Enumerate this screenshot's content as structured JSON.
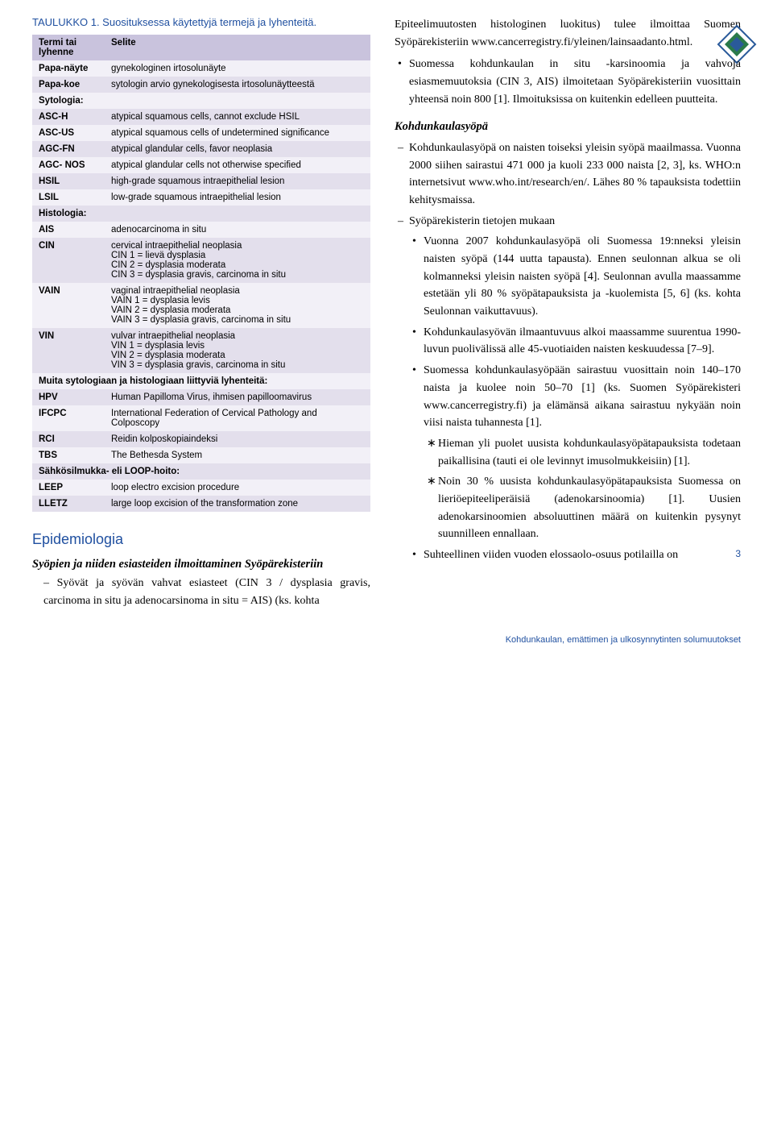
{
  "table": {
    "title": "TAULUKKO 1. Suosituksessa käytettyjä termejä ja lyhenteitä.",
    "headers": {
      "term": "Termi tai lyhenne",
      "desc": "Selite"
    },
    "rows": [
      {
        "term": "Papa-näyte",
        "desc": "gynekologinen irtosolunäyte",
        "stripe": "odd"
      },
      {
        "term": "Papa-koe",
        "desc": "sytologin arvio gynekologisesta irtosolunäytteestä",
        "stripe": "even"
      },
      {
        "section": "Sytologia:",
        "stripe": "odd"
      },
      {
        "term": "ASC-H",
        "desc": "atypical squamous cells, cannot exclude HSIL",
        "stripe": "even"
      },
      {
        "term": "ASC-US",
        "desc": "atypical squamous cells of undetermined significance",
        "stripe": "odd"
      },
      {
        "term": "AGC-FN",
        "desc": "atypical glandular cells, favor neoplasia",
        "stripe": "even"
      },
      {
        "term": "AGC- NOS",
        "desc": "atypical glandular cells not otherwise specified",
        "stripe": "odd"
      },
      {
        "term": "HSIL",
        "desc": "high-grade squamous intraepithelial lesion",
        "stripe": "even"
      },
      {
        "term": "LSIL",
        "desc": "low-grade squamous intraepithelial lesion",
        "stripe": "odd"
      },
      {
        "section": "Histologia:",
        "stripe": "even"
      },
      {
        "term": "AIS",
        "desc": "adenocarcinoma in situ",
        "stripe": "odd"
      },
      {
        "term": "CIN",
        "desc": "cervical intraepithelial neoplasia\nCIN 1 = lievä dysplasia\nCIN 2 = dysplasia moderata\nCIN 3 = dysplasia gravis, carcinoma in situ",
        "stripe": "even"
      },
      {
        "term": "VAIN",
        "desc": "vaginal intraepithelial neoplasia\nVAIN 1 = dysplasia levis\nVAIN 2 = dysplasia moderata\nVAIN 3 = dysplasia gravis, carcinoma in situ",
        "stripe": "odd"
      },
      {
        "term": "VIN",
        "desc": "vulvar intraepithelial neoplasia\nVIN 1 = dysplasia levis\nVIN 2 = dysplasia moderata\nVIN 3 = dysplasia gravis, carcinoma in situ",
        "stripe": "even"
      },
      {
        "section": "Muita sytologiaan ja histologiaan liittyviä lyhenteitä:",
        "stripe": "odd"
      },
      {
        "term": "HPV",
        "desc": "Human Papilloma Virus, ihmisen papilloomavirus",
        "stripe": "even"
      },
      {
        "term": "IFCPC",
        "desc": "International Federation of Cervical Pathology and Colposcopy",
        "stripe": "odd"
      },
      {
        "term": "RCI",
        "desc": "Reidin kolposkopiaindeksi",
        "stripe": "even"
      },
      {
        "term": "TBS",
        "desc": "The Bethesda System",
        "stripe": "odd"
      },
      {
        "section": "Sähkösilmukka- eli LOOP-hoito:",
        "stripe": "even"
      },
      {
        "term": "LEEP",
        "desc": "loop electro excision procedure",
        "stripe": "odd"
      },
      {
        "term": "LLETZ",
        "desc": "large loop excision of the transformation zone",
        "stripe": "even"
      }
    ]
  },
  "left": {
    "heading": "Epidemiologia",
    "subheading": "Syöpien ja niiden esiasteiden ilmoittaminen Syöpärekisteriin",
    "text": "– Syövät ja syövän vahvat esiasteet (CIN 3 / dysplasia gravis, carcinoma in situ ja adenocarsinoma in situ = AIS) (ks. kohta"
  },
  "right": {
    "para1": "Epiteelimuutosten histologinen luokitus) tulee ilmoittaa Suomen Syöpärekisteriin www.cancerregistry.fi/yleinen/lainsaadanto.html.",
    "bullet1": "Suomessa kohdunkaulan in situ -karsinoomia ja vahvoja esiasmemuutoksia (CIN 3, AIS) ilmoitetaan Syöpärekisteriin vuosittain yhteensä noin 800 [1]. Ilmoituksissa on kuitenkin edelleen puutteita.",
    "sub_italic": "Kohdunkaulasyöpä",
    "dash1": "Kohdunkaulasyöpä on naisten toiseksi yleisin syöpä maailmassa. Vuonna 2000 siihen sairastui 471 000 ja kuoli 233 000 naista [2, 3], ks. WHO:n internetsivut www.who.int/research/en/. Lähes 80 % tapauksista todettiin kehitysmaissa.",
    "dash2": "Syöpärekisterin tietojen mukaan",
    "b2_1": "Vuonna 2007 kohdunkaulasyöpä oli Suomessa 19:nneksi yleisin naisten syöpä (144 uutta tapausta). Ennen seulonnan alkua se oli kolmanneksi yleisin naisten syöpä [4]. Seulonnan avulla maassamme estetään yli 80 % syöpätapauksista ja -kuolemista [5, 6] (ks. kohta Seulonnan vaikuttavuus).",
    "b2_2": "Kohdunkaulasyövän ilmaantuvuus alkoi maassamme suurentua 1990-luvun puolivälissä alle 45-vuotiaiden naisten keskuudessa [7–9].",
    "b2_3": "Suomessa kohdunkaulasyöpään sairastuu vuosittain noin 140–170 naista ja kuolee noin 50–70 [1] (ks. Suomen Syöpärekisteri www.cancerregistry.fi) ja elämänsä aikana sairastuu nykyään noin viisi naista tuhannesta [1].",
    "s1": "Hieman yli puolet uusista kohdunkaulasyöpätapauksista todetaan paikallisina (tauti ei ole levinnyt imusolmukkeisiin) [1].",
    "s2": "Noin 30 % uusista kohdunkaulasyöpätapauksista Suomessa on lieriöepiteeliperäisiä (adenokarsinoomia) [1]. Uusien adenokarsinoomien absoluuttinen määrä on kuitenkin pysynyt suunnilleen ennallaan.",
    "b2_4": "Suhteellinen viiden vuoden elossaolo-osuus potilailla on"
  },
  "footer": {
    "text": "Kohdunkaulan, emättimen ja ulkosynnytinten solumuutokset",
    "page": "3"
  }
}
